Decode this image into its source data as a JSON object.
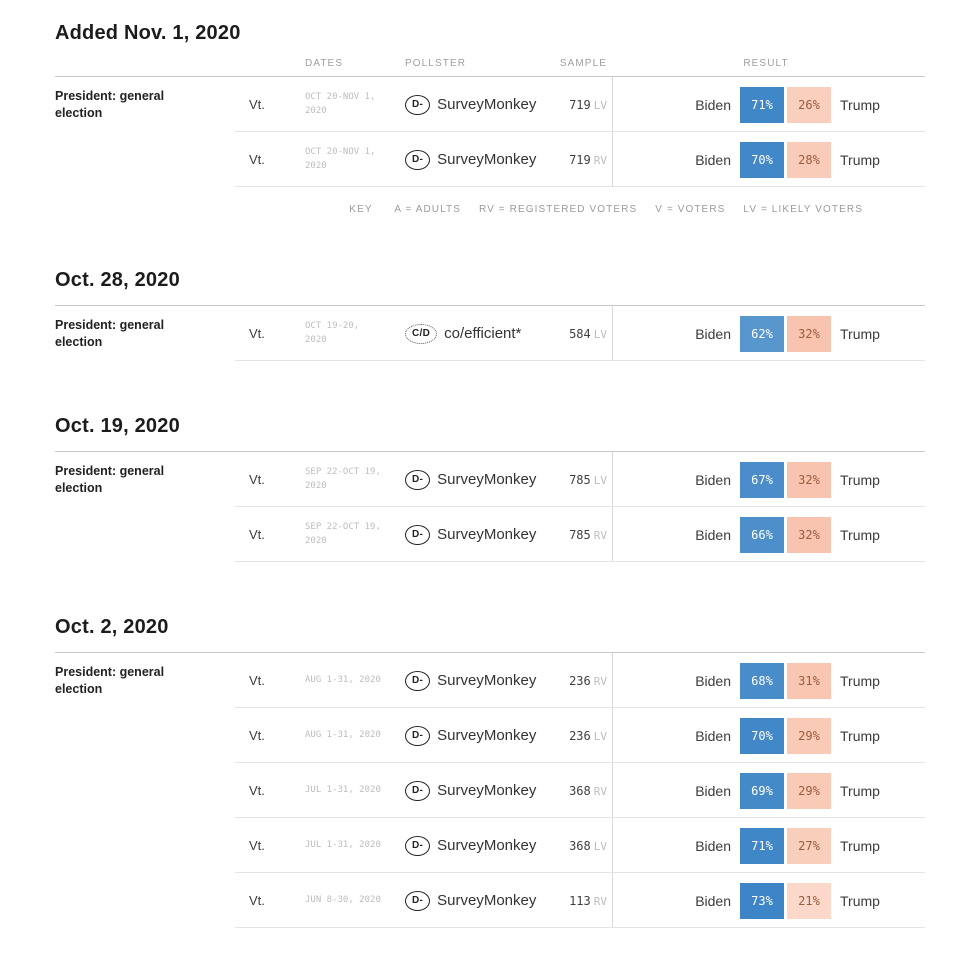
{
  "key": {
    "label": "KEY",
    "items": [
      "A = ADULTS",
      "RV = REGISTERED VOTERS",
      "V = VOTERS",
      "LV = LIKELY VOTERS"
    ]
  },
  "columns": {
    "dates": "DATES",
    "pollster": "POLLSTER",
    "sample": "SAMPLE",
    "result": "RESULT"
  },
  "colors": {
    "dem": "#3d85c6",
    "rep": "#f07b4a",
    "dem_box_text": "#ffffff",
    "rep_box_text": "#9a5b3c"
  },
  "sections": [
    {
      "heading": "Added Nov. 1, 2020",
      "has_header": true,
      "show_key": true,
      "rows": [
        {
          "race": "President: general election",
          "state": "Vt.",
          "dates": "OCT 20-NOV 1,\n2020",
          "grade": "D-",
          "grade_style": "solid",
          "pollster": "SurveyMonkey",
          "sample_n": "719",
          "sample_type": "LV",
          "dem_name": "Biden",
          "dem_pct": "71%",
          "rep_pct": "26%",
          "rep_name": "Trump"
        },
        {
          "race": "",
          "state": "Vt.",
          "dates": "OCT 20-NOV 1,\n2020",
          "grade": "D-",
          "grade_style": "solid",
          "pollster": "SurveyMonkey",
          "sample_n": "719",
          "sample_type": "RV",
          "dem_name": "Biden",
          "dem_pct": "70%",
          "rep_pct": "28%",
          "rep_name": "Trump"
        }
      ]
    },
    {
      "heading": "Oct. 28, 2020",
      "has_header": false,
      "show_key": false,
      "rows": [
        {
          "race": "President: general election",
          "state": "Vt.",
          "dates": "OCT 19-20,\n2020",
          "grade": "C/D",
          "grade_style": "dotted",
          "pollster": "co/efficient*",
          "sample_n": "584",
          "sample_type": "LV",
          "dem_name": "Biden",
          "dem_pct": "62%",
          "rep_pct": "32%",
          "rep_name": "Trump"
        }
      ]
    },
    {
      "heading": "Oct. 19, 2020",
      "has_header": false,
      "show_key": false,
      "rows": [
        {
          "race": "President: general election",
          "state": "Vt.",
          "dates": "SEP 22-OCT 19,\n2020",
          "grade": "D-",
          "grade_style": "solid",
          "pollster": "SurveyMonkey",
          "sample_n": "785",
          "sample_type": "LV",
          "dem_name": "Biden",
          "dem_pct": "67%",
          "rep_pct": "32%",
          "rep_name": "Trump"
        },
        {
          "race": "",
          "state": "Vt.",
          "dates": "SEP 22-OCT 19,\n2020",
          "grade": "D-",
          "grade_style": "solid",
          "pollster": "SurveyMonkey",
          "sample_n": "785",
          "sample_type": "RV",
          "dem_name": "Biden",
          "dem_pct": "66%",
          "rep_pct": "32%",
          "rep_name": "Trump"
        }
      ]
    },
    {
      "heading": "Oct. 2, 2020",
      "has_header": false,
      "show_key": false,
      "rows": [
        {
          "race": "President: general election",
          "state": "Vt.",
          "dates": "AUG 1-31, 2020",
          "grade": "D-",
          "grade_style": "solid",
          "pollster": "SurveyMonkey",
          "sample_n": "236",
          "sample_type": "RV",
          "dem_name": "Biden",
          "dem_pct": "68%",
          "rep_pct": "31%",
          "rep_name": "Trump"
        },
        {
          "race": "",
          "state": "Vt.",
          "dates": "AUG 1-31, 2020",
          "grade": "D-",
          "grade_style": "solid",
          "pollster": "SurveyMonkey",
          "sample_n": "236",
          "sample_type": "LV",
          "dem_name": "Biden",
          "dem_pct": "70%",
          "rep_pct": "29%",
          "rep_name": "Trump"
        },
        {
          "race": "",
          "state": "Vt.",
          "dates": "JUL 1-31, 2020",
          "grade": "D-",
          "grade_style": "solid",
          "pollster": "SurveyMonkey",
          "sample_n": "368",
          "sample_type": "RV",
          "dem_name": "Biden",
          "dem_pct": "69%",
          "rep_pct": "29%",
          "rep_name": "Trump"
        },
        {
          "race": "",
          "state": "Vt.",
          "dates": "JUL 1-31, 2020",
          "grade": "D-",
          "grade_style": "solid",
          "pollster": "SurveyMonkey",
          "sample_n": "368",
          "sample_type": "LV",
          "dem_name": "Biden",
          "dem_pct": "71%",
          "rep_pct": "27%",
          "rep_name": "Trump"
        },
        {
          "race": "",
          "state": "Vt.",
          "dates": "JUN 8-30, 2020",
          "grade": "D-",
          "grade_style": "solid",
          "pollster": "SurveyMonkey",
          "sample_n": "113",
          "sample_type": "RV",
          "dem_name": "Biden",
          "dem_pct": "73%",
          "rep_pct": "21%",
          "rep_name": "Trump"
        }
      ]
    }
  ]
}
